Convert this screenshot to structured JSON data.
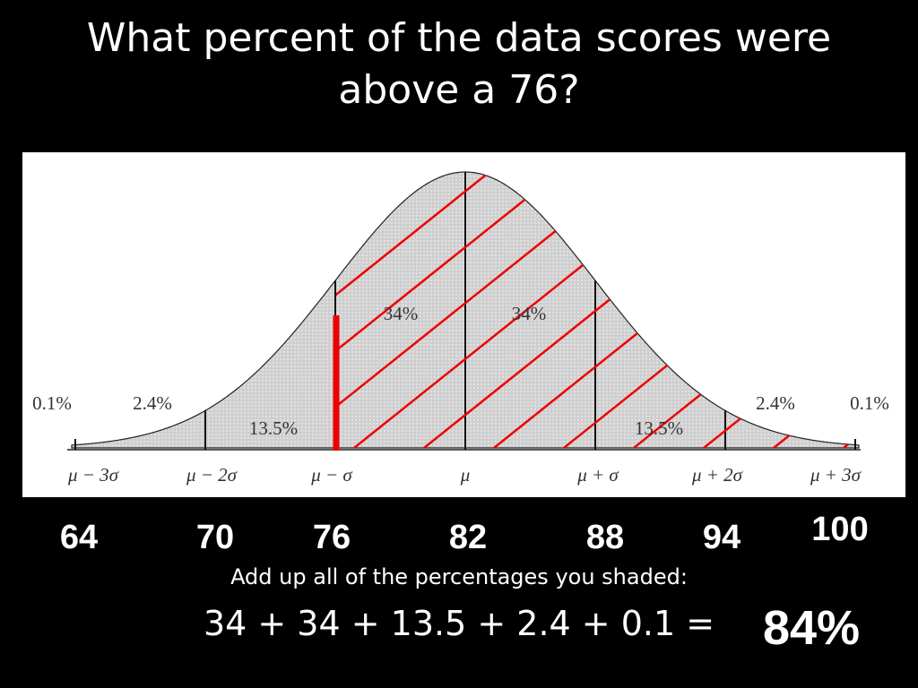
{
  "title": "What percent of the data scores were above a 76?",
  "figure": {
    "region_labels": [
      "0.1%",
      "2.4%",
      "13.5%",
      "34%",
      "34%",
      "13.5%",
      "2.4%",
      "0.1%"
    ],
    "axis_labels": [
      "μ − 3σ",
      "μ − 2σ",
      "μ − σ",
      "μ",
      "μ + σ",
      "μ + 2σ",
      "μ + 3σ"
    ]
  },
  "scores": [
    "64",
    "70",
    "76",
    "82",
    "88",
    "94",
    "100"
  ],
  "instruction": "Add up all of the percentages you shaded:",
  "equation": "34 + 34 + 13.5 + 2.4 + 0.1 =",
  "answer": "84%"
}
